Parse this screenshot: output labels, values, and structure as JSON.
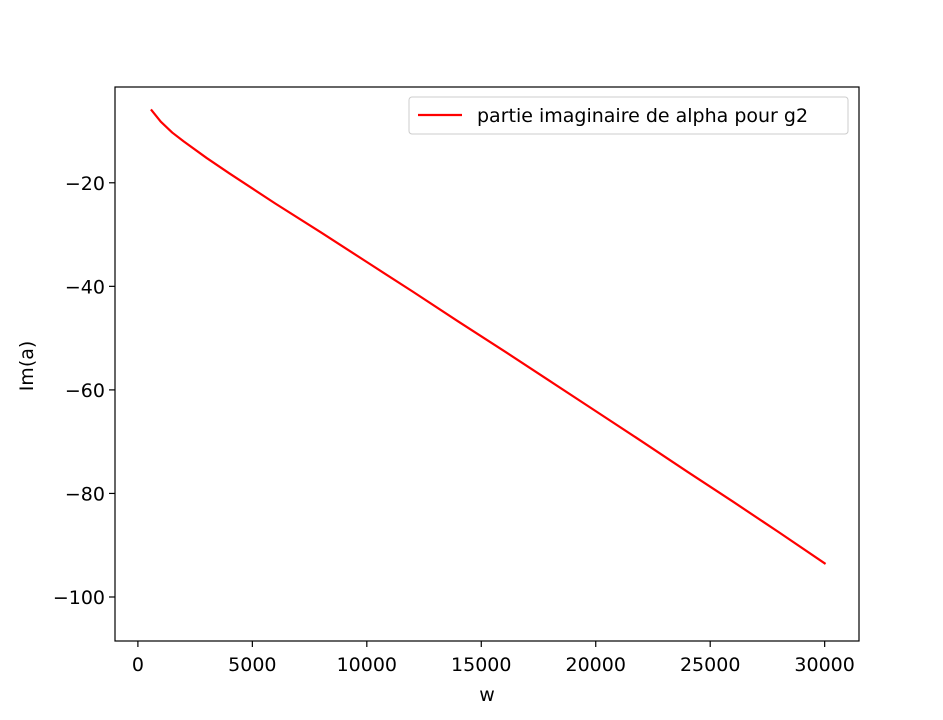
{
  "chart_data": {
    "type": "line",
    "title": "",
    "xlabel": "w",
    "ylabel": "Im(a)",
    "xlim": [
      -1000,
      31500
    ],
    "ylim": [
      -108.5,
      -1.5
    ],
    "x_ticks": [
      0,
      5000,
      10000,
      15000,
      20000,
      25000,
      30000
    ],
    "x_tick_labels": [
      "0",
      "5000",
      "10000",
      "15000",
      "20000",
      "25000",
      "30000"
    ],
    "y_ticks": [
      -20,
      -40,
      -60,
      -80,
      -100
    ],
    "y_tick_labels": [
      "−20",
      "−40",
      "−60",
      "−80",
      "−100"
    ],
    "grid": false,
    "legend_position": "top-right",
    "series": [
      {
        "name": "partie imaginaire de alpha pour g2",
        "color": "#ff0000",
        "x": [
          600,
          1000,
          1500,
          2000,
          3000,
          4000,
          5000,
          6000,
          8000,
          10000,
          12000,
          14000,
          16000,
          18000,
          20000,
          22000,
          24000,
          26000,
          28000,
          30000
        ],
        "y": [
          -6.0,
          -8.2,
          -10.3,
          -12.0,
          -15.2,
          -18.2,
          -21.1,
          -24.0,
          -29.6,
          -35.3,
          -41.0,
          -46.8,
          -52.5,
          -58.3,
          -64.1,
          -69.9,
          -75.8,
          -81.6,
          -87.5,
          -93.5
        ]
      }
    ]
  }
}
